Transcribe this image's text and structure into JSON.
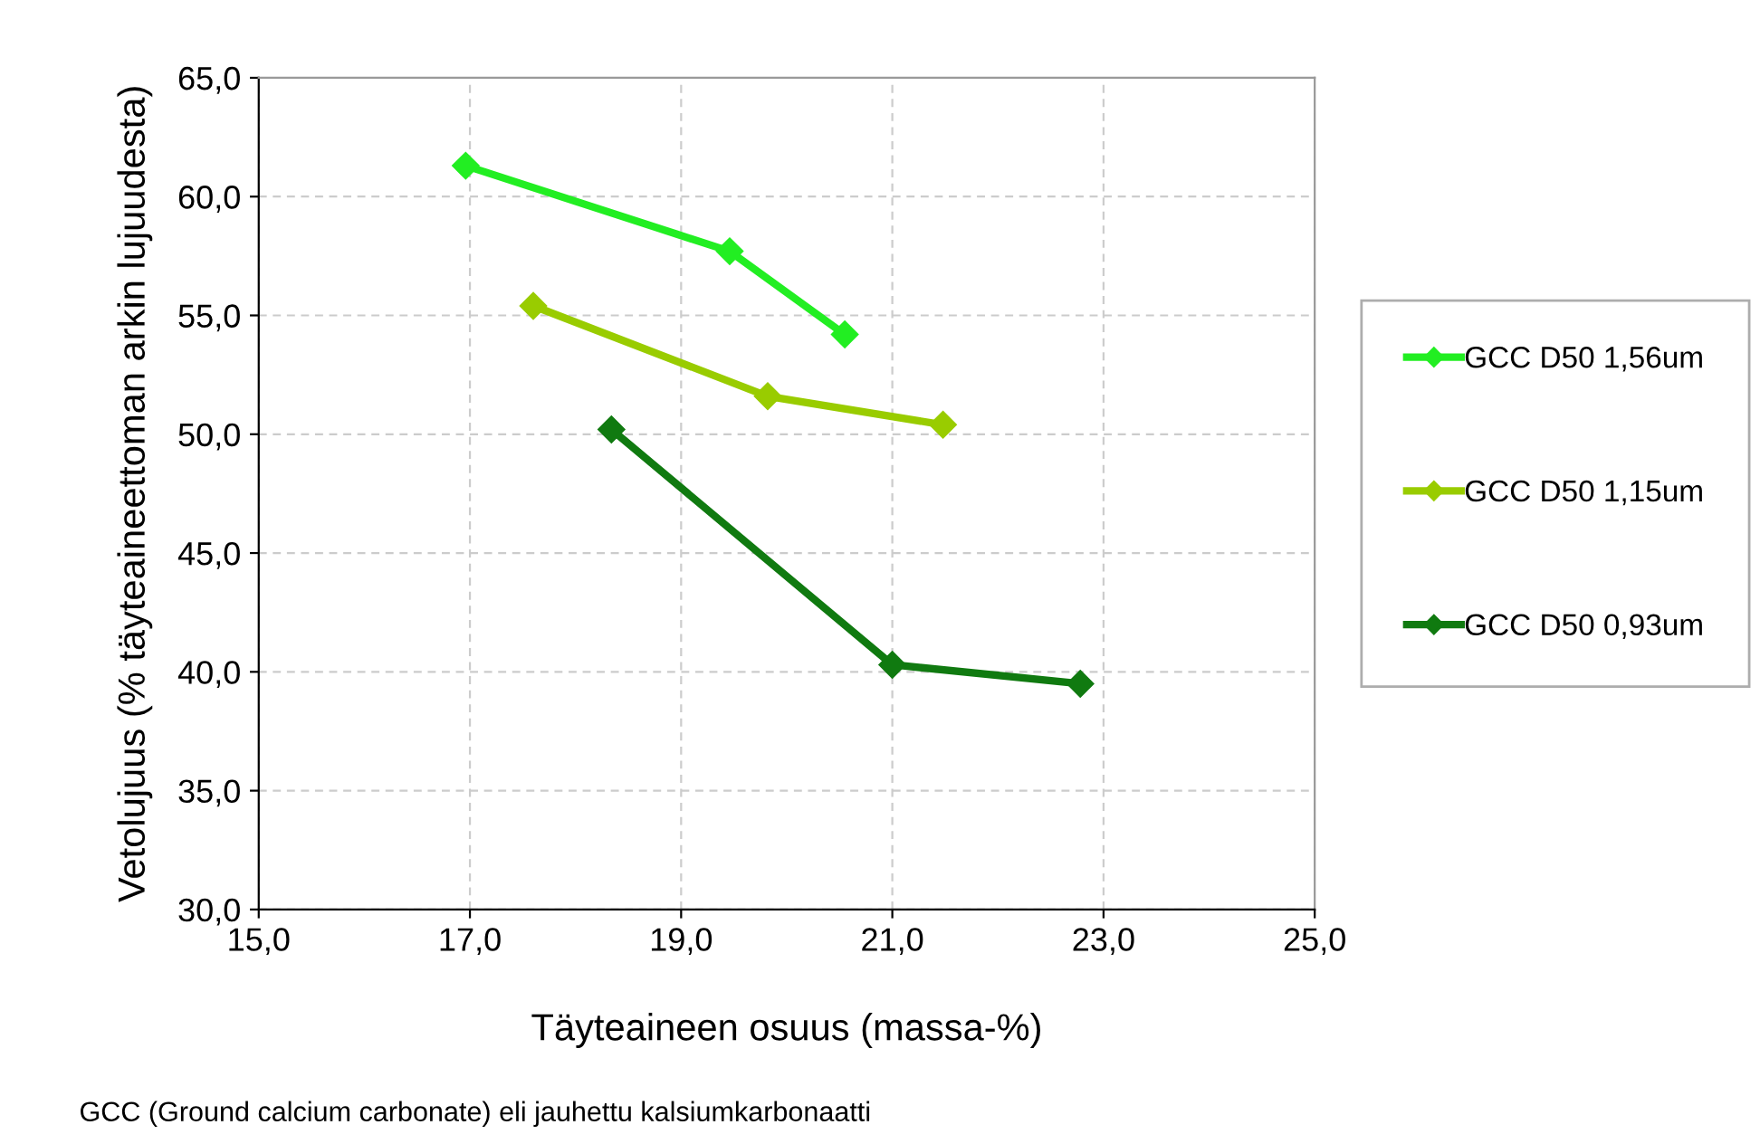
{
  "chart_data": {
    "type": "line",
    "xlabel": "Täyteaineen osuus (massa-%)",
    "ylabel": "Vetolujuus (% täyteaineettoman arkin lujuudesta)",
    "annotations": [
      "GCC (Ground calcium carbonate) eli jauhettu kalsiumkarbonaatti"
    ],
    "series": [
      {
        "name": "GCC D50 1,56um",
        "color": "#22ee22",
        "x": [
          16.96,
          19.46,
          20.55
        ],
        "values": [
          61.3,
          57.7,
          54.2
        ]
      },
      {
        "name": "GCC D50 1,15um",
        "color": "#99cc00",
        "x": [
          17.6,
          19.82,
          21.48
        ],
        "values": [
          55.4,
          51.6,
          50.4
        ]
      },
      {
        "name": "GCC D50 0,93um",
        "color": "#107a10",
        "x": [
          18.34,
          21.0,
          22.78
        ],
        "values": [
          50.2,
          40.3,
          39.5
        ]
      }
    ],
    "xlim": [
      15,
      25
    ],
    "ylim": [
      30,
      65
    ],
    "xticks": [
      {
        "value": 15,
        "label": "15,0"
      },
      {
        "value": 17,
        "label": "17,0"
      },
      {
        "value": 19,
        "label": "19,0"
      },
      {
        "value": 21,
        "label": "21,0"
      },
      {
        "value": 23,
        "label": "23,0"
      },
      {
        "value": 25,
        "label": "25,0"
      }
    ],
    "yticks": [
      {
        "value": 30,
        "label": "30,0"
      },
      {
        "value": 35,
        "label": "35,0"
      },
      {
        "value": 40,
        "label": "40,0"
      },
      {
        "value": 45,
        "label": "45,0"
      },
      {
        "value": 50,
        "label": "50,0"
      },
      {
        "value": 55,
        "label": "55,0"
      },
      {
        "value": 60,
        "label": "60,0"
      },
      {
        "value": 65,
        "label": "65,0"
      }
    ],
    "grid": true,
    "legend": "right",
    "marker": "diamond",
    "line_style": "solid"
  }
}
